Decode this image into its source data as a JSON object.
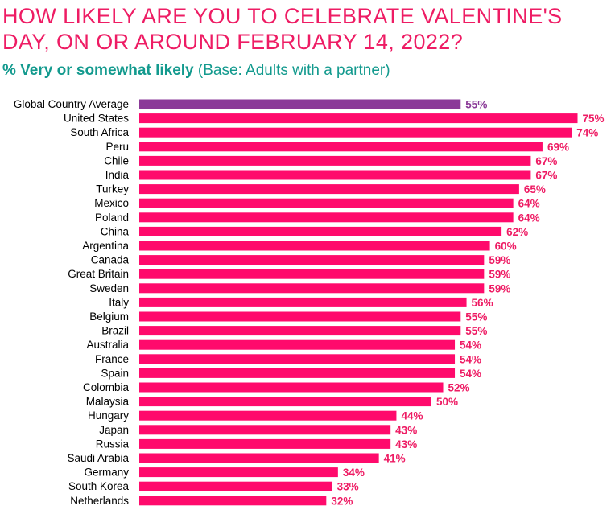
{
  "header": {
    "title": "HOW LIKELY ARE YOU TO CELEBRATE VALENTINE'S DAY, ON OR AROUND FEBRUARY 14, 2022?",
    "subtitle_strong": "% Very or somewhat likely",
    "subtitle_base": "(Base: Adults with a partner)"
  },
  "colors": {
    "title": "#ee1c64",
    "subtitle": "#139a8e",
    "bar": "#ff0a6c",
    "highlight_bar": "#8b3a98",
    "value_label": "#ee1c64",
    "highlight_value_label": "#8b3a98",
    "category_label": "#000000"
  },
  "chart_data": {
    "type": "bar",
    "orientation": "horizontal",
    "title": "HOW LIKELY ARE YOU TO CELEBRATE VALENTINE'S DAY, ON OR AROUND FEBRUARY 14, 2022?",
    "subtitle": "% Very or somewhat likely (Base: Adults with a partner)",
    "xlabel": "",
    "ylabel": "",
    "xlim": [
      0,
      100
    ],
    "grid": false,
    "legend": "none",
    "value_suffix": "%",
    "highlight_category": "Global Country Average",
    "categories": [
      "Global Country Average",
      "United States",
      "South Africa",
      "Peru",
      "Chile",
      "India",
      "Turkey",
      "Mexico",
      "Poland",
      "China",
      "Argentina",
      "Canada",
      "Great Britain",
      "Sweden",
      "Italy",
      "Belgium",
      "Brazil",
      "Australia",
      "France",
      "Spain",
      "Colombia",
      "Malaysia",
      "Hungary",
      "Japan",
      "Russia",
      "Saudi Arabia",
      "Germany",
      "South Korea",
      "Netherlands"
    ],
    "values": [
      55,
      75,
      74,
      69,
      67,
      67,
      65,
      64,
      64,
      62,
      60,
      59,
      59,
      59,
      56,
      55,
      55,
      54,
      54,
      54,
      52,
      50,
      44,
      43,
      43,
      41,
      34,
      33,
      32
    ],
    "value_labels": [
      "55%",
      "75%",
      "74%",
      "69%",
      "67%",
      "67%",
      "65%",
      "64%",
      "64%",
      "62%",
      "60%",
      "59%",
      "59%",
      "59%",
      "56%",
      "55%",
      "55%",
      "54%",
      "54%",
      "54%",
      "52%",
      "50%",
      "44%",
      "43%",
      "43%",
      "41%",
      "34%",
      "33%",
      "32%"
    ]
  }
}
